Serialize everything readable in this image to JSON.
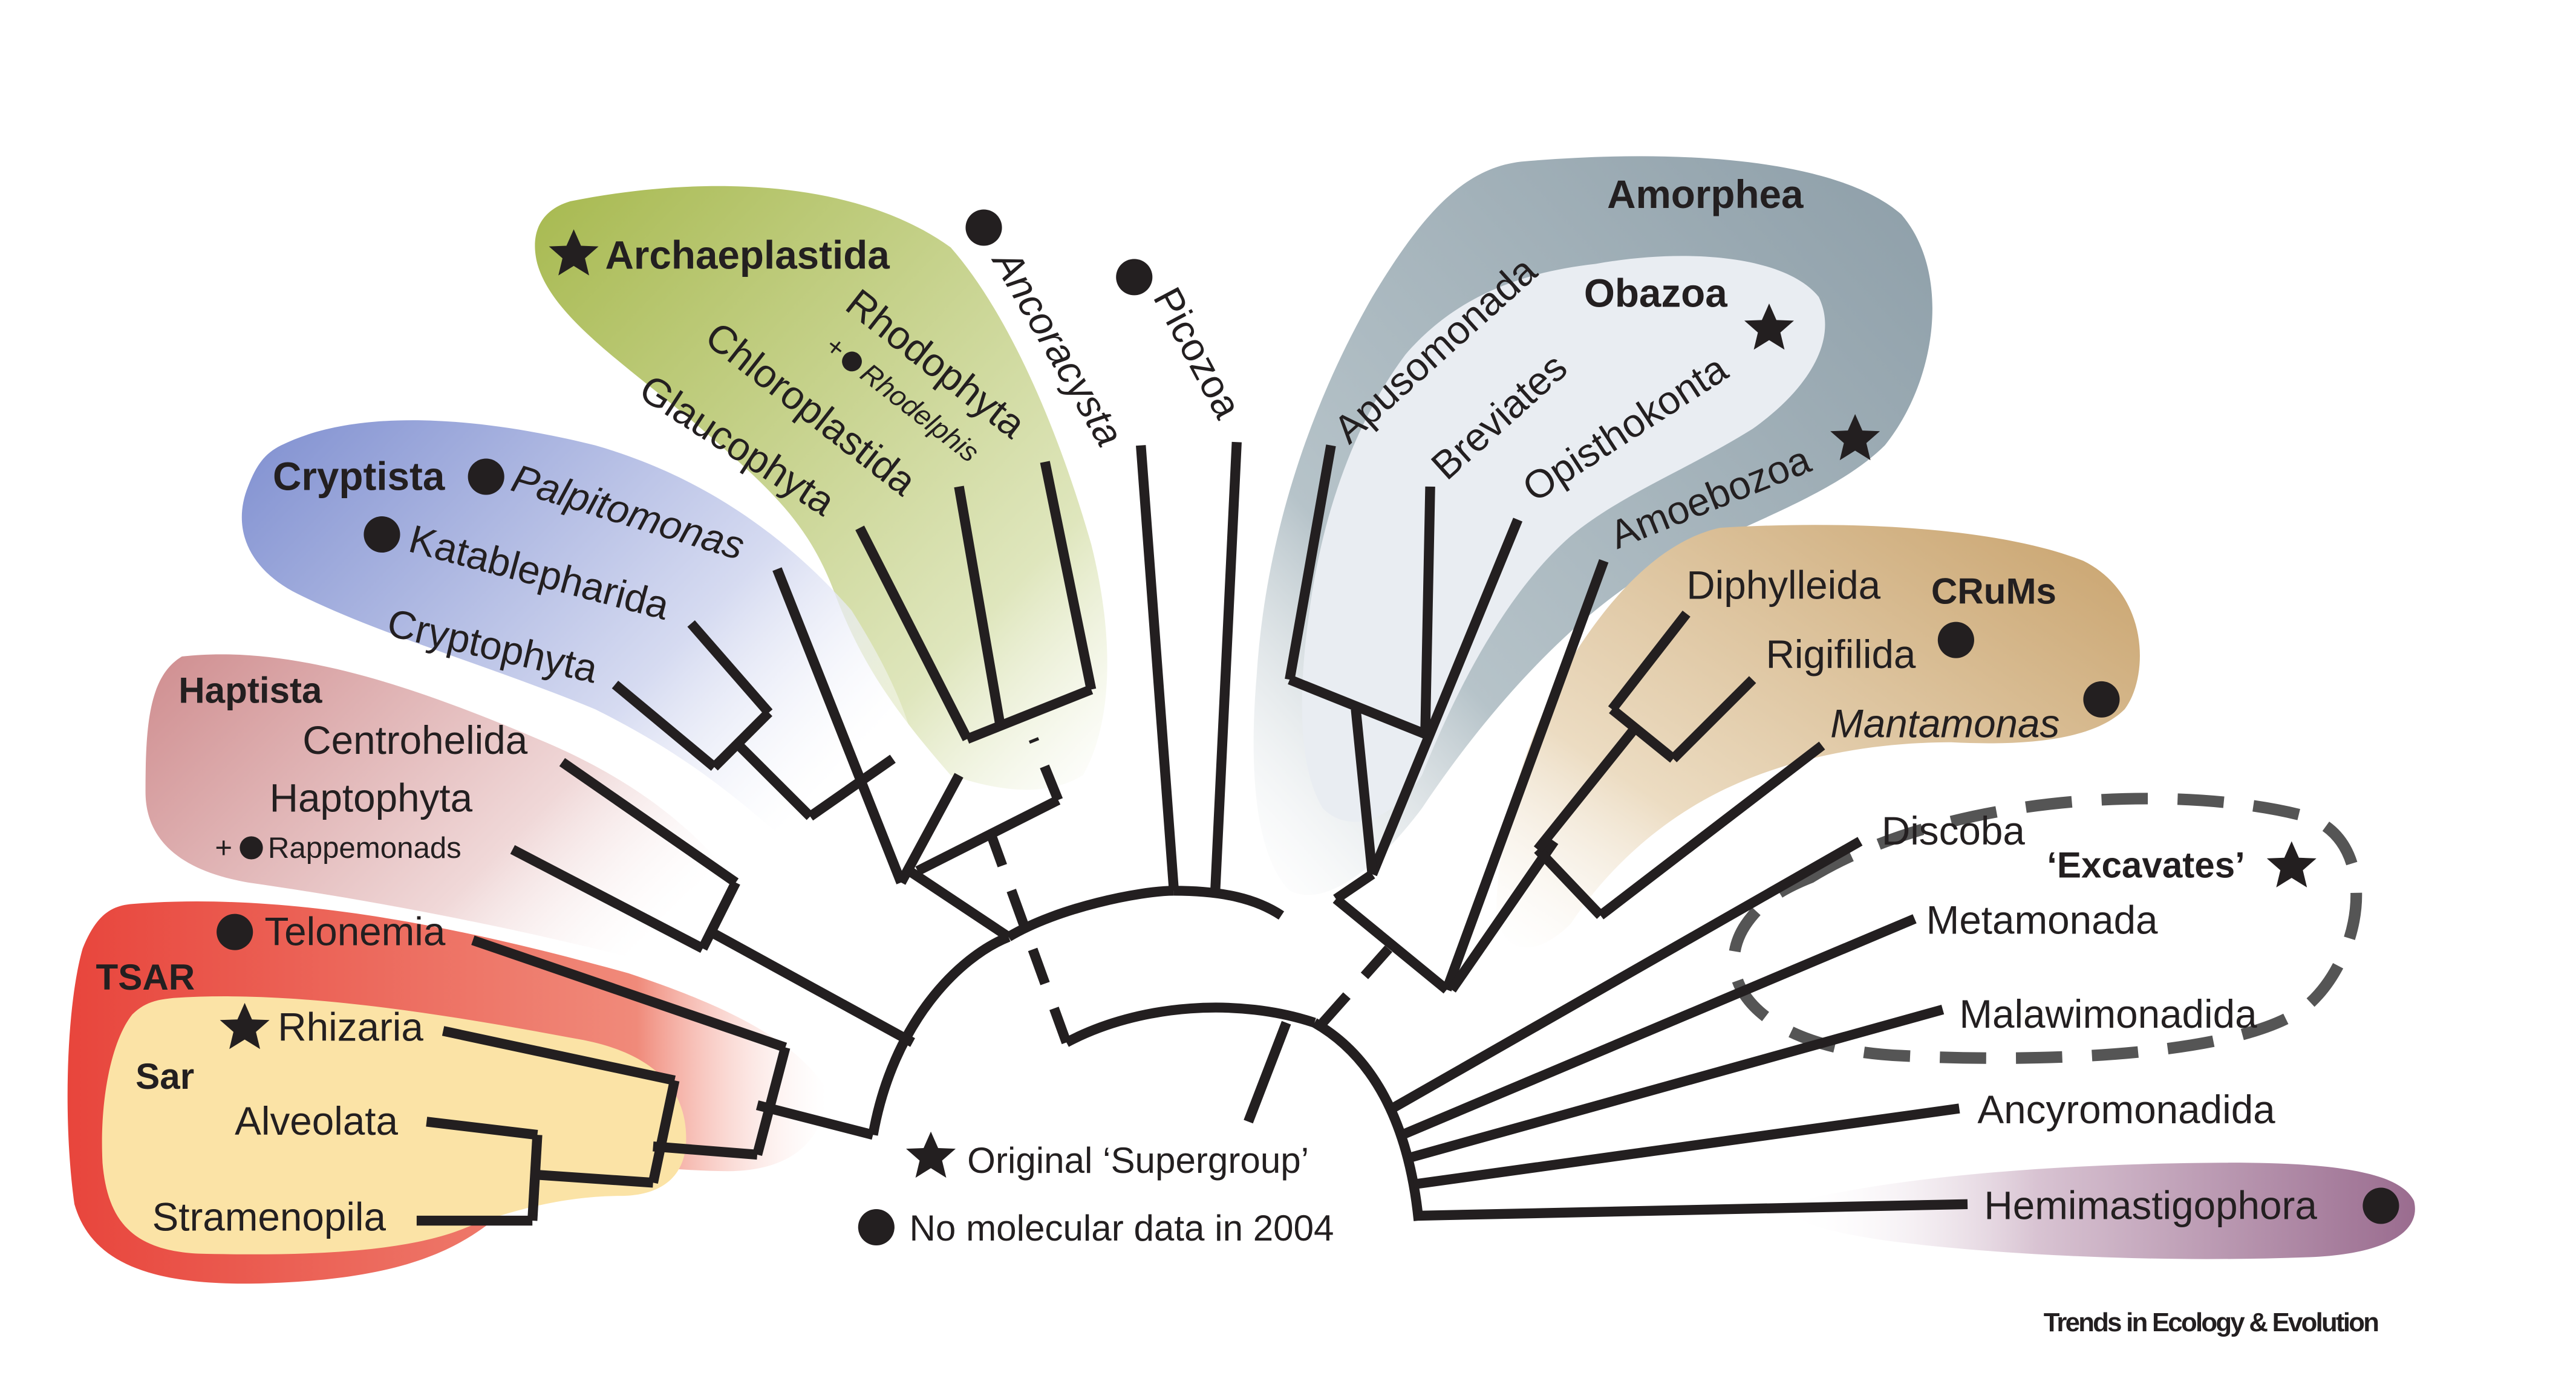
{
  "groups": {
    "archaeplastida": "Archaeplastida",
    "cryptista": "Cryptista",
    "haptista": "Haptista",
    "tsar": "TSAR",
    "sar": "Sar",
    "amorphea": "Amorphea",
    "obazoa": "Obazoa",
    "crums": "CRuMs",
    "excavates": "‘Excavates’"
  },
  "taxa": {
    "rhodophyta": "Rhodophyta",
    "rhodelphis_prefix": "+",
    "rhodelphis": "Rhodelphis",
    "chloroplastida": "Chloroplastida",
    "glaucophyta": "Glaucophyta",
    "ancoracysta": "Ancoracysta",
    "picozoa": "Picozoa",
    "palpitomonas": "Palpitomonas",
    "katablepharida": "Katablepharida",
    "cryptophyta": "Cryptophyta",
    "centrohelida": "Centrohelida",
    "haptophyta": "Haptophyta",
    "rappemonads_prefix": "+",
    "rappemonads": "Rappemonads",
    "telonemia": "Telonemia",
    "rhizaria": "Rhizaria",
    "alveolata": "Alveolata",
    "stramenopila": "Stramenopila",
    "apusomonada": "Apusomonada",
    "breviates": "Breviates",
    "opisthokonta": "Opisthokonta",
    "amoebozoa": "Amoebozoa",
    "diphylleida": "Diphylleida",
    "rigifilida": "Rigifilida",
    "mantamonas": "Mantamonas",
    "discoba": "Discoba",
    "metamonada": "Metamonada",
    "malawimonadida": "Malawimonadida",
    "ancyromonadida": "Ancyromonadida",
    "hemimastigophora": "Hemimastigophora"
  },
  "legend": {
    "star_label": "Original ‘Supergroup’",
    "dot_label": "No molecular data in 2004",
    "star_icon": "star-icon",
    "dot_icon": "dot-icon"
  },
  "credit": "Trends in Ecology & Evolution",
  "colors": {
    "archaeplastida": "#a7b94f",
    "cryptista": "#7f8fd0",
    "haptista": "#cf8d8f",
    "tsar": "#e8453c",
    "sar": "#fbe3a6",
    "amorphea": "#9aabb3",
    "obazoa": "#e9edf2",
    "crums": "#c8a26c",
    "hemimastigophora": "#9a6c8f",
    "ink": "#231f20"
  }
}
